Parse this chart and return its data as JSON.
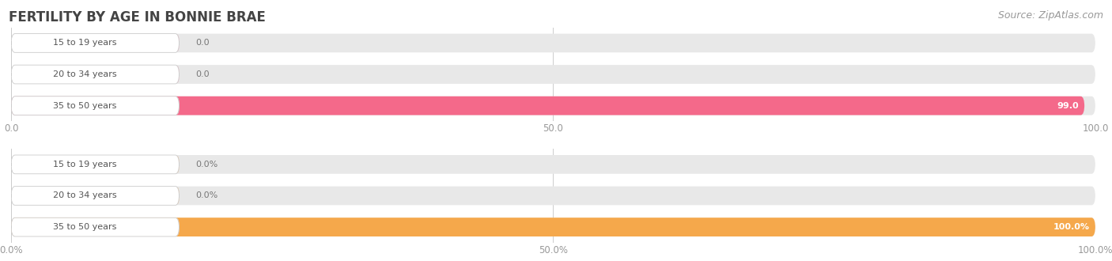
{
  "title": "FERTILITY BY AGE IN BONNIE BRAE",
  "source": "Source: ZipAtlas.com",
  "top_chart": {
    "categories": [
      "15 to 19 years",
      "20 to 34 years",
      "35 to 50 years"
    ],
    "values": [
      0.0,
      0.0,
      99.0
    ],
    "xlim": [
      0,
      100
    ],
    "xticks": [
      0.0,
      50.0,
      100.0
    ],
    "bar_color": "#F4698A",
    "bar_color_light": "#F9B8C8",
    "bg_color": "#E8E8E8",
    "label_suffix": ""
  },
  "bottom_chart": {
    "categories": [
      "15 to 19 years",
      "20 to 34 years",
      "35 to 50 years"
    ],
    "values": [
      0.0,
      0.0,
      100.0
    ],
    "xlim": [
      0,
      100
    ],
    "xticks": [
      0.0,
      50.0,
      100.0
    ],
    "bar_color": "#F5A84B",
    "bar_color_light": "#F9CFA0",
    "bg_color": "#E8E8E8",
    "label_suffix": "%"
  },
  "fig_bg": "#FFFFFF",
  "title_fontsize": 12,
  "source_fontsize": 9,
  "tick_fontsize": 8.5,
  "bar_label_fontsize": 8,
  "cat_label_fontsize": 8
}
